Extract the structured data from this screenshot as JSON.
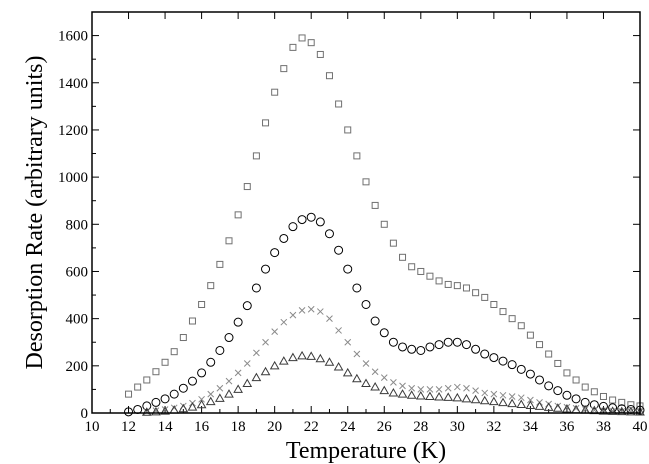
{
  "chart_data": {
    "type": "scatter",
    "title": "",
    "xlabel": "Temperature (K)",
    "ylabel": "Desorption Rate (arbitrary units)",
    "xlim": [
      10,
      40
    ],
    "ylim": [
      0,
      1700
    ],
    "xticks": [
      10,
      12,
      14,
      16,
      18,
      20,
      22,
      24,
      26,
      28,
      30,
      32,
      34,
      36,
      38,
      40
    ],
    "yticks": [
      0,
      200,
      400,
      600,
      800,
      1000,
      1200,
      1400,
      1600
    ],
    "grid": false,
    "legend": "none",
    "series": [
      {
        "marker": "square",
        "color": "#707070",
        "x": [
          12,
          12.5,
          13,
          13.5,
          14,
          14.5,
          15,
          15.5,
          16,
          16.5,
          17,
          17.5,
          18,
          18.5,
          19,
          19.5,
          20,
          20.5,
          21,
          21.5,
          22,
          22.5,
          23,
          23.5,
          24,
          24.5,
          25,
          25.5,
          26,
          26.5,
          27,
          27.5,
          28,
          28.5,
          29,
          29.5,
          30,
          30.5,
          31,
          31.5,
          32,
          32.5,
          33,
          33.5,
          34,
          34.5,
          35,
          35.5,
          36,
          36.5,
          37,
          37.5,
          38,
          38.5,
          39,
          39.5,
          40
        ],
        "y": [
          80,
          110,
          140,
          175,
          215,
          260,
          320,
          390,
          460,
          540,
          630,
          730,
          840,
          960,
          1090,
          1230,
          1360,
          1460,
          1550,
          1590,
          1570,
          1520,
          1430,
          1310,
          1200,
          1090,
          980,
          880,
          800,
          720,
          660,
          620,
          600,
          580,
          560,
          545,
          540,
          530,
          510,
          490,
          460,
          430,
          400,
          370,
          330,
          290,
          250,
          210,
          170,
          140,
          110,
          90,
          70,
          55,
          45,
          35,
          30
        ]
      },
      {
        "marker": "circle",
        "color": "#000000",
        "x": [
          12,
          12.5,
          13,
          13.5,
          14,
          14.5,
          15,
          15.5,
          16,
          16.5,
          17,
          17.5,
          18,
          18.5,
          19,
          19.5,
          20,
          20.5,
          21,
          21.5,
          22,
          22.5,
          23,
          23.5,
          24,
          24.5,
          25,
          25.5,
          26,
          26.5,
          27,
          27.5,
          28,
          28.5,
          29,
          29.5,
          30,
          30.5,
          31,
          31.5,
          32,
          32.5,
          33,
          33.5,
          34,
          34.5,
          35,
          35.5,
          36,
          36.5,
          37,
          37.5,
          38,
          38.5,
          39,
          39.5,
          40
        ],
        "y": [
          5,
          15,
          30,
          45,
          60,
          80,
          105,
          135,
          170,
          215,
          265,
          320,
          385,
          455,
          530,
          610,
          680,
          740,
          790,
          820,
          830,
          810,
          760,
          690,
          610,
          530,
          460,
          390,
          340,
          300,
          280,
          270,
          265,
          280,
          290,
          300,
          300,
          290,
          270,
          250,
          235,
          220,
          205,
          185,
          165,
          140,
          115,
          95,
          75,
          60,
          45,
          35,
          28,
          22,
          18,
          15,
          12
        ]
      },
      {
        "marker": "cross",
        "color": "#8a8a8a",
        "x": [
          13,
          13.5,
          14,
          14.5,
          15,
          15.5,
          16,
          16.5,
          17,
          17.5,
          18,
          18.5,
          19,
          19.5,
          20,
          20.5,
          21,
          21.5,
          22,
          22.5,
          23,
          23.5,
          24,
          24.5,
          25,
          25.5,
          26,
          26.5,
          27,
          27.5,
          28,
          28.5,
          29,
          29.5,
          30,
          30.5,
          31,
          31.5,
          32,
          32.5,
          33,
          33.5,
          34,
          34.5,
          35,
          35.5,
          36,
          36.5,
          37,
          37.5,
          38,
          38.5,
          39,
          39.5,
          40
        ],
        "y": [
          5,
          10,
          15,
          22,
          30,
          42,
          58,
          80,
          105,
          135,
          170,
          210,
          255,
          300,
          345,
          385,
          415,
          435,
          440,
          430,
          400,
          350,
          300,
          250,
          210,
          175,
          150,
          130,
          115,
          105,
          100,
          100,
          100,
          105,
          110,
          105,
          95,
          85,
          80,
          75,
          70,
          65,
          55,
          45,
          38,
          30,
          25,
          20,
          16,
          12,
          10,
          8,
          7,
          6,
          5
        ]
      },
      {
        "marker": "triangle",
        "color": "#3a3a3a",
        "x": [
          13,
          13.5,
          14,
          14.5,
          15,
          15.5,
          16,
          16.5,
          17,
          17.5,
          18,
          18.5,
          19,
          19.5,
          20,
          20.5,
          21,
          21.5,
          22,
          22.5,
          23,
          23.5,
          24,
          24.5,
          25,
          25.5,
          26,
          26.5,
          27,
          27.5,
          28,
          28.5,
          29,
          29.5,
          30,
          30.5,
          31,
          31.5,
          32,
          32.5,
          33,
          33.5,
          34,
          34.5,
          35,
          35.5,
          36,
          36.5,
          37,
          37.5,
          38,
          38.5,
          39,
          39.5,
          40
        ],
        "y": [
          3,
          5,
          8,
          12,
          18,
          25,
          35,
          48,
          62,
          80,
          100,
          125,
          150,
          175,
          200,
          220,
          235,
          242,
          240,
          230,
          215,
          195,
          170,
          145,
          125,
          110,
          95,
          85,
          80,
          75,
          72,
          70,
          68,
          66,
          64,
          60,
          56,
          52,
          48,
          44,
          40,
          36,
          32,
          28,
          24,
          20,
          17,
          14,
          12,
          10,
          8,
          7,
          6,
          5,
          4
        ]
      }
    ]
  }
}
